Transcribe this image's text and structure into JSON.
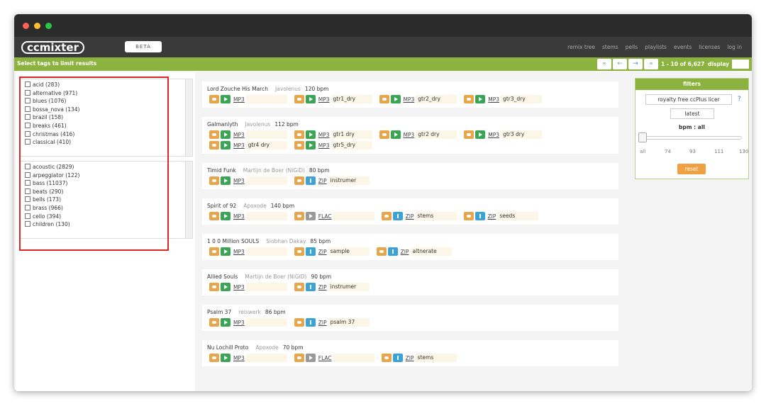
{
  "brand": {
    "logo": "ccmixter",
    "beta": "BETA"
  },
  "nav": [
    "remix tree",
    "stems",
    "pells",
    "playlists",
    "events",
    "licenses",
    "log in"
  ],
  "toolbar": {
    "label": "Select tags to limit results",
    "range": "1 - 10 of 6,627",
    "display": "display"
  },
  "tag_lists": [
    [
      "acid (283)",
      "alternative (971)",
      "blues (1076)",
      "bossa_nova (134)",
      "brazil (158)",
      "breaks (461)",
      "christmas (416)",
      "classical (410)"
    ],
    [
      "acoustic (2829)",
      "arpeggiator (122)",
      "bass (11037)",
      "beats (290)",
      "bells (173)",
      "brass (966)",
      "cello (394)",
      "children (130)"
    ]
  ],
  "tracks": [
    {
      "title": "Lord Zouche His March",
      "artist": "Javolenus",
      "bpm": "120 bpm",
      "files": [
        {
          "format": "MP3"
        },
        {
          "format": "MP3",
          "name": "gtr1_dry"
        },
        {
          "format": "MP3",
          "name": "gtr2_dry"
        },
        {
          "format": "MP3",
          "name": "gtr3_dry"
        }
      ]
    },
    {
      "title": "Galmanlyth",
      "artist": "Javolenus",
      "bpm": "112 bpm",
      "files": [
        {
          "format": "MP3"
        },
        {
          "format": "MP3",
          "name": "gtr1 dry"
        },
        {
          "format": "MP3",
          "name": "gtr2 dry"
        },
        {
          "format": "MP3",
          "name": "gtr3 dry"
        },
        {
          "format": "MP3",
          "name": "gtr4 dry"
        },
        {
          "format": "MP3",
          "name": "gtr5_dry"
        }
      ]
    },
    {
      "title": "Timid Funk",
      "artist": "Martijn de Boer (NiGiD)",
      "bpm": "80 bpm",
      "files": [
        {
          "format": "MP3"
        },
        {
          "format": "ZIP",
          "name": "instrumer"
        }
      ]
    },
    {
      "title": "Spirit of 92",
      "artist": "Apoxode",
      "bpm": "140 bpm",
      "files": [
        {
          "format": "MP3"
        },
        {
          "format": "FLAC"
        },
        {
          "format": "ZIP",
          "name": "stems"
        },
        {
          "format": "ZIP",
          "name": "seeds"
        }
      ]
    },
    {
      "title": "1 0 0 Million SOULS",
      "artist": "Siobhan Dakay",
      "bpm": "85 bpm",
      "files": [
        {
          "format": "MP3"
        },
        {
          "format": "ZIP",
          "name": "sample"
        },
        {
          "format": "ZIP",
          "name": "altnerate"
        }
      ]
    },
    {
      "title": "Allied Souls",
      "artist": "Martijn de Boer (NiGiD)",
      "bpm": "90 bpm",
      "files": [
        {
          "format": "MP3"
        },
        {
          "format": "ZIP",
          "name": "instrumer"
        }
      ]
    },
    {
      "title": "Psalm 37",
      "artist": "reiswerk",
      "bpm": "86 bpm",
      "files": [
        {
          "format": "MP3"
        },
        {
          "format": "ZIP",
          "name": "psalm 37"
        }
      ]
    },
    {
      "title": "Nu Lochill Proto",
      "artist": "Apoxode",
      "bpm": "70 bpm",
      "files": [
        {
          "format": "MP3"
        },
        {
          "format": "FLAC"
        },
        {
          "format": "ZIP",
          "name": "stems"
        }
      ]
    }
  ],
  "filters": {
    "title": "filters",
    "license": "royalty free ccPlus licer",
    "sort": "latest",
    "bpm": "bpm : all",
    "scale": [
      "all",
      "74",
      "93",
      "111",
      "130"
    ],
    "reset": "reset"
  }
}
